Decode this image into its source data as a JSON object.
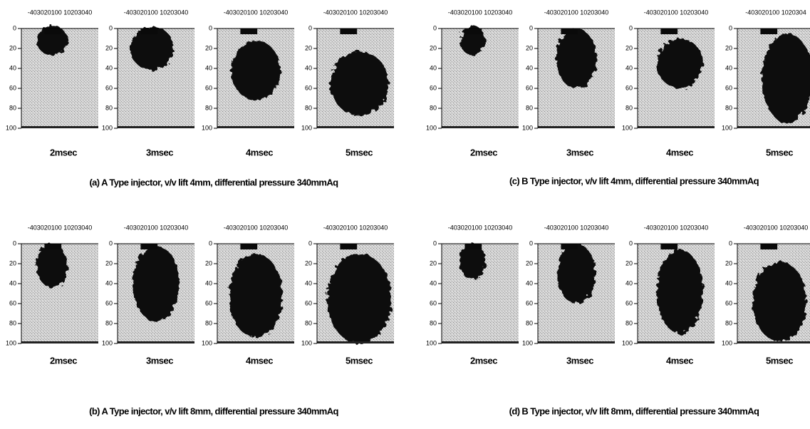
{
  "y_ticks": [
    "0",
    "20",
    "40",
    "60",
    "80",
    "100"
  ],
  "groups": [
    {
      "caption": "(a) A Type injector, v/v lift 4mm, differential pressure 340mmAq",
      "frames": [
        {
          "label": "2msec",
          "x_axis": "-403020100 10203040"
        },
        {
          "label": "3msec",
          "x_axis": "-403020100 10203040"
        },
        {
          "label": "4msec",
          "x_axis": "-403020100 10203040"
        },
        {
          "label": "5msec",
          "x_axis": "-403020100 10203040"
        }
      ]
    },
    {
      "caption": "(b) A Type injector, v/v lift 8mm, differential pressure 340mmAq",
      "frames": [
        {
          "label": "2msec",
          "x_axis": "-403020100 10203040"
        },
        {
          "label": "3msec",
          "x_axis": "-403020100 10203040"
        },
        {
          "label": "4msec",
          "x_axis": "-403020100 10203040"
        },
        {
          "label": "5msec",
          "x_axis": "-403020100 10203040"
        }
      ]
    },
    {
      "caption": "(c) B Type injector, v/v lift 4mm, differential pressure 340mmAq",
      "frames": [
        {
          "label": "2msec",
          "x_axis": "-403020100 10203040"
        },
        {
          "label": "3msec",
          "x_axis": "-403020100 10203040"
        },
        {
          "label": "4msec",
          "x_axis": "-403020100 10203040"
        },
        {
          "label": "5msec",
          "x_axis": "-403020100 1020304"
        }
      ]
    },
    {
      "caption": "(d) B Type injector, v/v lift 8mm, differential pressure 340mmAq",
      "frames": [
        {
          "label": "2msec",
          "x_axis": "-403020100 10203040"
        },
        {
          "label": "3msec",
          "x_axis": "-403020100 10203040"
        },
        {
          "label": "4msec",
          "x_axis": "-403020100 10203040"
        },
        {
          "label": "5msec",
          "x_axis": "-403020100 10203040"
        }
      ]
    }
  ]
}
